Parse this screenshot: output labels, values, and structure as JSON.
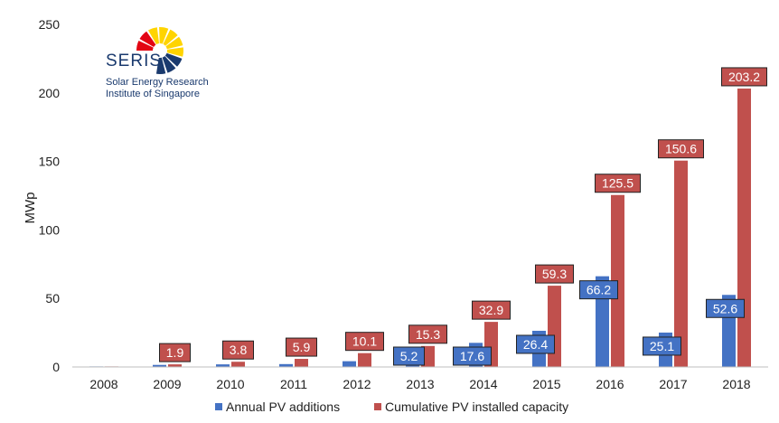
{
  "chart_data": {
    "type": "bar",
    "title": "",
    "xlabel": "",
    "ylabel": "MWp",
    "ylim": [
      0,
      250
    ],
    "yticks": [
      0,
      50,
      100,
      150,
      200,
      250
    ],
    "grid": false,
    "legend_position": "bottom",
    "categories": [
      "2008",
      "2009",
      "2010",
      "2011",
      "2012",
      "2013",
      "2014",
      "2015",
      "2016",
      "2017",
      "2018"
    ],
    "series": [
      {
        "name": "Annual PV additions",
        "color": "#4472c4",
        "values": [
          0.4,
          1.5,
          1.9,
          2.1,
          4.2,
          5.2,
          17.6,
          26.4,
          66.2,
          25.1,
          52.6
        ],
        "data_labels": [
          "",
          "",
          "",
          "",
          "",
          "5.2",
          "17.6",
          "26.4",
          "66.2",
          "25.1",
          "52.6"
        ]
      },
      {
        "name": "Cumulative PV installed capacity",
        "color": "#c0504d",
        "values": [
          0.4,
          1.9,
          3.8,
          5.9,
          10.1,
          15.3,
          32.9,
          59.3,
          125.5,
          150.6,
          203.2
        ],
        "data_labels": [
          "",
          "1.9",
          "3.8",
          "5.9",
          "10.1",
          "15.3",
          "32.9",
          "59.3",
          "125.5",
          "150.6",
          "203.2"
        ]
      }
    ]
  },
  "logo": {
    "name": "SERIS",
    "line1": "Solar Energy Research",
    "line2": "Institute of Singapore",
    "colors": {
      "red": "#e30613",
      "yellow": "#ffd400",
      "blue": "#1a3a6e"
    }
  }
}
